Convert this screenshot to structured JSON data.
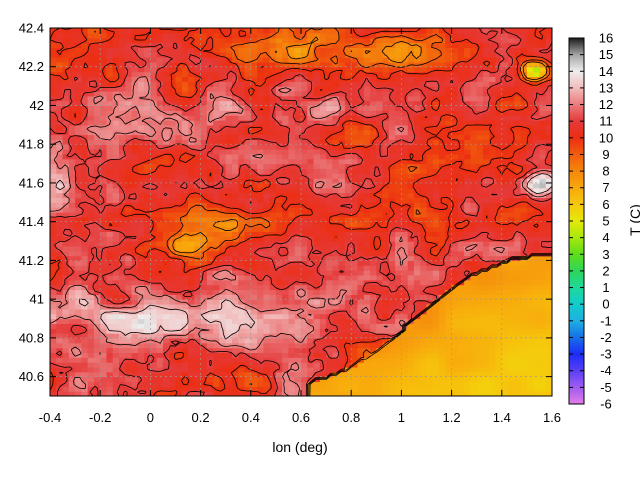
{
  "chart_data": {
    "type": "heatmap",
    "title": "",
    "xlabel": "lon (deg)",
    "ylabel": "",
    "colorbar_label": "T (C)",
    "xlim": [
      -0.4,
      1.6
    ],
    "ylim": [
      40.5,
      42.4
    ],
    "x_ticks": [
      "-0.4",
      "-0.2",
      "0",
      "0.2",
      "0.4",
      "0.6",
      "0.8",
      "1",
      "1.2",
      "1.4",
      "1.6"
    ],
    "y_ticks": [
      "40.6",
      "40.8",
      "41",
      "41.2",
      "41.4",
      "41.6",
      "41.8",
      "42",
      "42.2",
      "42.4"
    ],
    "colorbar_ticks": [
      "-6",
      "-5",
      "-4",
      "-3",
      "-2",
      "-1",
      "0",
      "1",
      "2",
      "3",
      "4",
      "5",
      "6",
      "7",
      "8",
      "9",
      "10",
      "11",
      "12",
      "13",
      "14",
      "15",
      "16"
    ],
    "color_range": [
      -6,
      16
    ],
    "colorscale": [
      {
        "v": -6,
        "c": "#e27de9"
      },
      {
        "v": -5,
        "c": "#a05cf0"
      },
      {
        "v": -4,
        "c": "#5a3ff6"
      },
      {
        "v": -3,
        "c": "#1c2cf8"
      },
      {
        "v": -2,
        "c": "#1570e8"
      },
      {
        "v": -1,
        "c": "#1fb0e0"
      },
      {
        "v": 0,
        "c": "#12cccc"
      },
      {
        "v": 1,
        "c": "#1ed89a"
      },
      {
        "v": 2,
        "c": "#2ed55a"
      },
      {
        "v": 3,
        "c": "#5ede1a"
      },
      {
        "v": 4,
        "c": "#a8e80c"
      },
      {
        "v": 5,
        "c": "#e6e80a"
      },
      {
        "v": 6,
        "c": "#f6c80c"
      },
      {
        "v": 7,
        "c": "#f8a80c"
      },
      {
        "v": 8,
        "c": "#f5860c"
      },
      {
        "v": 9,
        "c": "#f15d0e"
      },
      {
        "v": 10,
        "c": "#ec2e12"
      },
      {
        "v": 11,
        "c": "#e53a3a"
      },
      {
        "v": 12,
        "c": "#eb7c7c"
      },
      {
        "v": 13,
        "c": "#f2bcbc"
      },
      {
        "v": 14,
        "c": "#eeeeee"
      },
      {
        "v": 15,
        "c": "#a4a4a4"
      },
      {
        "v": 16,
        "c": "#1a1a1a"
      }
    ],
    "grid": true,
    "contours": true,
    "legend": "colorbar-right"
  }
}
